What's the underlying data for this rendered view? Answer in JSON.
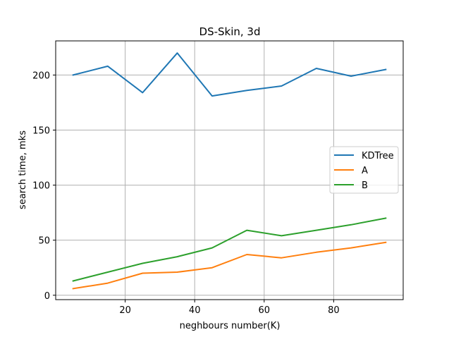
{
  "chart_data": {
    "type": "line",
    "title": "DS-Skin, 3d",
    "xlabel": "neghbours number(K)",
    "ylabel": "search time, mks",
    "x": [
      5,
      15,
      25,
      35,
      45,
      55,
      65,
      75,
      85,
      95
    ],
    "xlim": [
      0,
      100
    ],
    "ylim": [
      -4,
      231
    ],
    "xticks": [
      20,
      40,
      60,
      80
    ],
    "yticks": [
      0,
      50,
      100,
      150,
      200
    ],
    "grid": true,
    "legend_position": "center-right",
    "series": [
      {
        "name": "KDTree",
        "color": "#1f77b4",
        "values": [
          200,
          208,
          184,
          220,
          181,
          186,
          190,
          206,
          199,
          205
        ]
      },
      {
        "name": "A",
        "color": "#ff7f0e",
        "values": [
          6,
          11,
          20,
          21,
          25,
          37,
          34,
          39,
          43,
          48
        ]
      },
      {
        "name": "B",
        "color": "#2ca02c",
        "values": [
          13,
          21,
          29,
          35,
          43,
          59,
          54,
          59,
          64,
          70
        ]
      }
    ]
  }
}
